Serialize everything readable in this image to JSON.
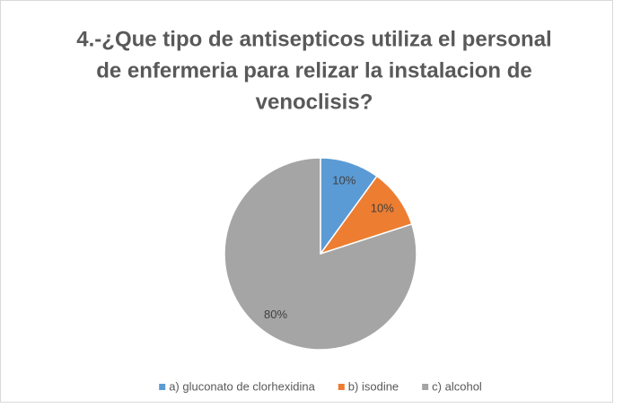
{
  "chart_data": {
    "type": "pie",
    "title": [
      "4.-¿Que tipo de antisepticos utiliza el personal",
      "de enfermeria para relizar la instalacion de",
      "venoclisis?"
    ],
    "categories": [
      "a) gluconato de clorhexidina",
      "b) isodine",
      "c) alcohol"
    ],
    "values": [
      10,
      10,
      80
    ],
    "value_labels": [
      "10%",
      "10%",
      "80%"
    ],
    "colors": [
      "#5b9bd5",
      "#ed7d31",
      "#a5a5a5"
    ],
    "legend": "bottom"
  }
}
